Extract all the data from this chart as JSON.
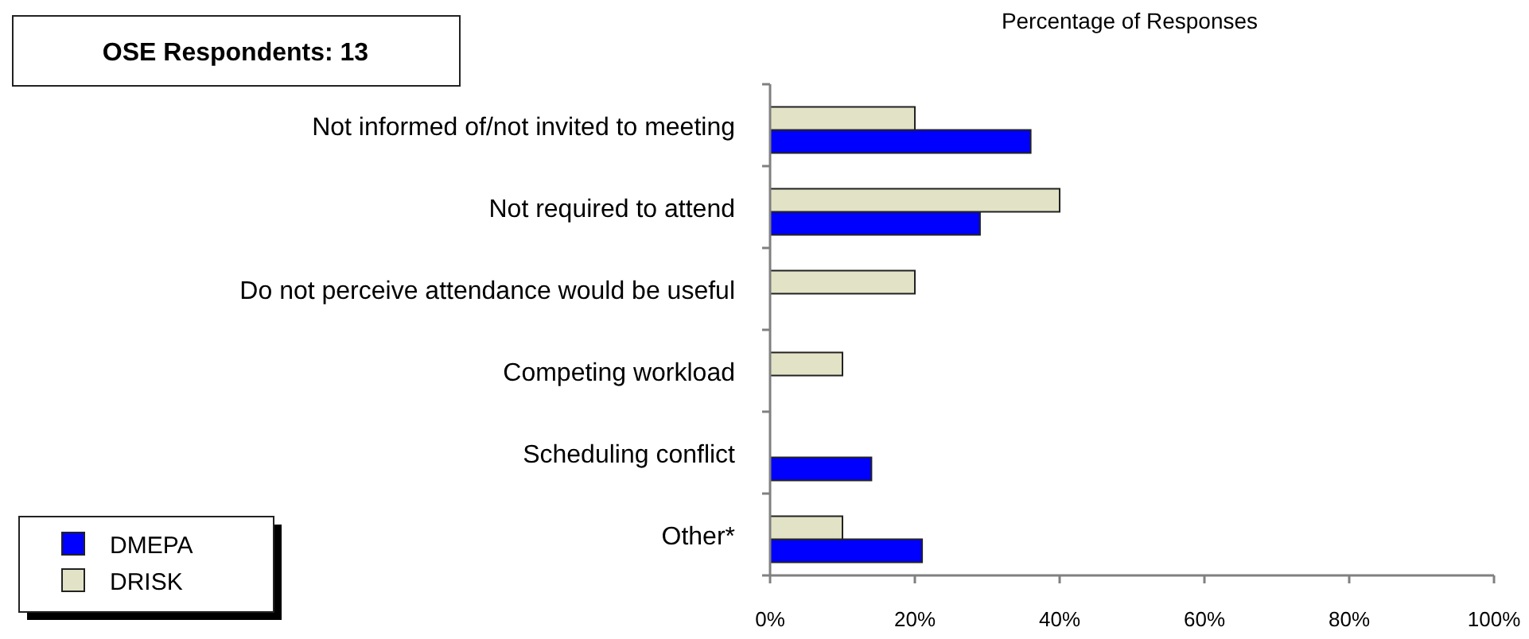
{
  "chart_data": {
    "type": "bar",
    "orientation": "horizontal",
    "title": "Percentage of Responses",
    "annotations": [
      "OSE Respondents: 13"
    ],
    "categories": [
      "Not informed of/not invited to meeting",
      "Not required to attend",
      "Do not perceive attendance would be useful",
      "Competing workload",
      "Scheduling conflict",
      "Other*"
    ],
    "series": [
      {
        "name": "DMEPA",
        "color": "#0000ff",
        "values": [
          36,
          29,
          null,
          null,
          14,
          21
        ]
      },
      {
        "name": "DRISK",
        "color": "#e2e2c6",
        "values": [
          20,
          40,
          20,
          10,
          null,
          10
        ]
      }
    ],
    "xlim": [
      0,
      100
    ],
    "xticks": [
      {
        "value": 0,
        "label": "0%"
      },
      {
        "value": 20,
        "label": "20%"
      },
      {
        "value": 40,
        "label": "40%"
      },
      {
        "value": 60,
        "label": "60%"
      },
      {
        "value": 80,
        "label": "80%"
      },
      {
        "value": 100,
        "label": "100%"
      }
    ],
    "grid": false,
    "legend": "bottom left"
  }
}
